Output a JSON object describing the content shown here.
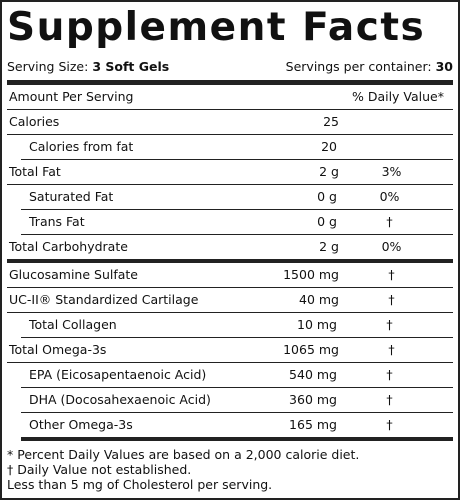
{
  "title": "Supplement Facts",
  "serving": {
    "label": "Serving Size:",
    "value": "3 Soft Gels"
  },
  "servings": {
    "label": "Servings per container:",
    "value": "30"
  },
  "header": {
    "amount": "Amount Per Serving",
    "dv": "% Daily Value*"
  },
  "rows": [
    {
      "name": "Calories",
      "amount": "25"
    },
    {
      "name": "Calories from fat",
      "amount": "20"
    },
    {
      "name": "Total Fat",
      "amount": "2 g",
      "dv": "3%"
    },
    {
      "name": "Saturated Fat",
      "amount": "0 g",
      "dv": "0%"
    },
    {
      "name": "Trans Fat",
      "amount": "0 g",
      "dv": "†"
    },
    {
      "name": "Total Carbohydrate",
      "amount": "2 g",
      "dv": "0%"
    },
    {
      "name": "Glucosamine Sulfate",
      "amount": "1500 mg",
      "dv": "†"
    },
    {
      "name": "UC-II® Standardized Cartilage",
      "amount": "40 mg",
      "dv": "†"
    },
    {
      "name": "Total Collagen",
      "amount": "10 mg",
      "dv": "†"
    },
    {
      "name": "Total Omega-3s",
      "amount": "1065 mg",
      "dv": "†"
    },
    {
      "name": "EPA (Eicosapentaenoic Acid)",
      "amount": "540 mg",
      "dv": "†"
    },
    {
      "name": "DHA (Docosahexaenoic Acid)",
      "amount": "360 mg",
      "dv": "†"
    },
    {
      "name": "Other Omega-3s",
      "amount": "165 mg",
      "dv": "†"
    }
  ],
  "footnotes": [
    "*  Percent Daily Values are based on a 2,000 calorie diet.",
    "†  Daily Value not established.",
    "Less than 5 mg of Cholesterol per serving."
  ]
}
